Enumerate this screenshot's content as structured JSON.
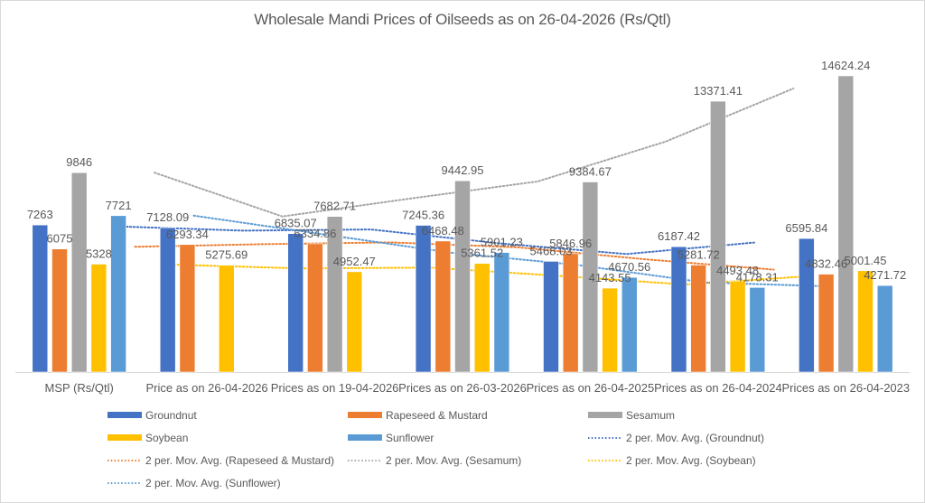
{
  "chart_data": {
    "type": "bar",
    "title": "Wholesale Mandi Prices of Oilseeds as on 26-04-2026 (Rs/Qtl)",
    "xlabel": "",
    "ylabel": "",
    "ylim": [
      0,
      14624.24
    ],
    "grid": false,
    "legend_position": "bottom",
    "categories": [
      "MSP (Rs/Qtl)",
      "Price as on 26-04-2026",
      "Prices as on 19-04-2026",
      "Prices as on 26-03-2026",
      "Prices as on 26-04-2025",
      "Prices as on 26-04-2024",
      "Prices as on 26-04-2023"
    ],
    "series": [
      {
        "name": "Groundnut",
        "color": "#4472c4",
        "values": [
          7263,
          7128.09,
          6835.07,
          7245.36,
          5468.03,
          6187.42,
          6595.84
        ],
        "labels": [
          "7263",
          "7128.09",
          "6835.07",
          "7245.36",
          "5468.03",
          "6187.42",
          "6595.84"
        ]
      },
      {
        "name": "Rapeseed & Mustard",
        "color": "#ed7d31",
        "values": [
          6075,
          6293.34,
          6334.86,
          6468.48,
          5846.96,
          5281.72,
          4832.46
        ],
        "labels": [
          "6075",
          "6293.34",
          "6334.86",
          "6468.48",
          "5846.96",
          "5281.72",
          "4832.46"
        ]
      },
      {
        "name": "Sesamum",
        "color": "#a5a5a5",
        "values": [
          9846,
          null,
          7682.71,
          9442.95,
          9384.67,
          13371.41,
          14624.24
        ],
        "labels": [
          "9846",
          "",
          "7682.71",
          "9442.95",
          "9384.67",
          "13371.41",
          "14624.24"
        ]
      },
      {
        "name": "Soybean",
        "color": "#ffc000",
        "values": [
          5328,
          5275.69,
          4952.47,
          5361.52,
          4143.55,
          4493.48,
          5001.45
        ],
        "labels": [
          "5328",
          "5275.69",
          "4952.47",
          "5361.52",
          "4143.55",
          "4493.48",
          "5001.45"
        ]
      },
      {
        "name": "Sunflower",
        "color": "#5b9bd5",
        "values": [
          7721,
          null,
          null,
          5901.23,
          4670.56,
          4178.31,
          4271.72
        ],
        "labels": [
          "7721",
          "",
          "",
          "5901.23",
          "4670.56",
          "4178.31",
          "4271.72"
        ]
      }
    ],
    "trendlines": [
      {
        "name": "2 per. Mov. Avg. (Groundnut)",
        "series": "Groundnut",
        "type": "moving_average",
        "period": 2,
        "color": "#4472c4"
      },
      {
        "name": "2 per. Mov. Avg. (Rapeseed & Mustard)",
        "series": "Rapeseed & Mustard",
        "type": "moving_average",
        "period": 2,
        "color": "#ed7d31"
      },
      {
        "name": "2 per. Mov. Avg. (Sesamum)",
        "series": "Sesamum",
        "type": "moving_average",
        "period": 2,
        "color": "#a5a5a5"
      },
      {
        "name": "2 per. Mov. Avg. (Soybean)",
        "series": "Soybean",
        "type": "moving_average",
        "period": 2,
        "color": "#ffc000"
      },
      {
        "name": "2 per. Mov. Avg. (Sunflower)",
        "series": "Sunflower",
        "type": "moving_average",
        "period": 2,
        "color": "#5b9bd5"
      }
    ],
    "legend": [
      {
        "label": "Groundnut",
        "kind": "bar",
        "color": "#4472c4"
      },
      {
        "label": "Rapeseed & Mustard",
        "kind": "bar",
        "color": "#ed7d31"
      },
      {
        "label": "Sesamum",
        "kind": "bar",
        "color": "#a5a5a5"
      },
      {
        "label": "Soybean",
        "kind": "bar",
        "color": "#ffc000"
      },
      {
        "label": "Sunflower",
        "kind": "bar",
        "color": "#5b9bd5"
      },
      {
        "label": "2 per. Mov. Avg. (Groundnut)",
        "kind": "dotted",
        "color": "#4472c4"
      },
      {
        "label": "2 per. Mov. Avg. (Rapeseed & Mustard)",
        "kind": "dotted",
        "color": "#ed7d31"
      },
      {
        "label": "2 per. Mov. Avg. (Sesamum)",
        "kind": "dotted",
        "color": "#a5a5a5"
      },
      {
        "label": "2 per. Mov. Avg. (Soybean)",
        "kind": "dotted",
        "color": "#ffc000"
      },
      {
        "label": "2 per. Mov. Avg. (Sunflower)",
        "kind": "dotted",
        "color": "#5b9bd5"
      }
    ]
  }
}
